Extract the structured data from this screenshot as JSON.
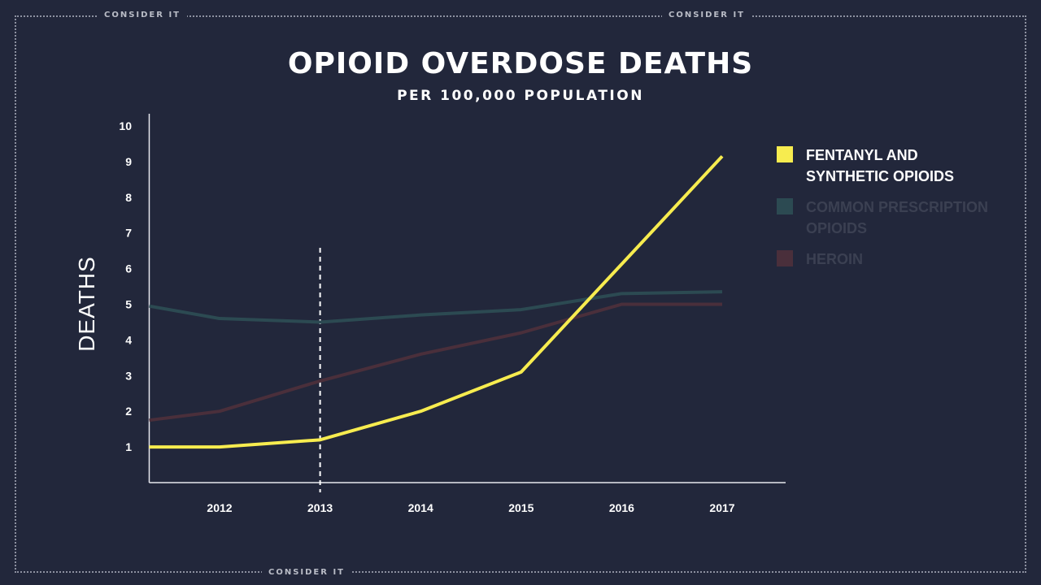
{
  "brand": {
    "label": "CONSIDER IT"
  },
  "chart_data": {
    "type": "line",
    "title": "OPIOID OVERDOSE DEATHS",
    "subtitle": "PER 100,000 POPULATION",
    "ylabel": "DEATHS",
    "xlabel": "",
    "x_ticks": [
      2012,
      2013,
      2014,
      2015,
      2016,
      2017
    ],
    "y_ticks": [
      1,
      2,
      3,
      4,
      5,
      6,
      7,
      8,
      9,
      10
    ],
    "xlim": [
      2011.3,
      2017.6
    ],
    "ylim": [
      0,
      10
    ],
    "grid": false,
    "legend_placement": "right",
    "highlight_x": 2013,
    "series": [
      {
        "name": "FENTANYL AND SYNTHETIC OPIOIDS",
        "color": "#f7ec4f",
        "text_color": "#ffffff",
        "x": [
          2011.3,
          2012,
          2013,
          2014,
          2015,
          2017
        ],
        "y": [
          1.0,
          1.0,
          1.2,
          2.0,
          3.1,
          9.15
        ]
      },
      {
        "name": "COMMON PRESCRIPTION OPIOIDS",
        "color": "#2c4a52",
        "text_color": "#3b4052",
        "x": [
          2011.3,
          2012,
          2013,
          2014,
          2015,
          2016,
          2017
        ],
        "y": [
          4.95,
          4.6,
          4.5,
          4.7,
          4.85,
          5.3,
          5.35
        ]
      },
      {
        "name": "HEROIN",
        "color": "#4a2f3b",
        "text_color": "#3b4052",
        "x": [
          2011.3,
          2012,
          2013,
          2014,
          2015,
          2016,
          2017
        ],
        "y": [
          1.75,
          2.0,
          2.85,
          3.6,
          4.2,
          5.0,
          5.0
        ]
      }
    ]
  }
}
